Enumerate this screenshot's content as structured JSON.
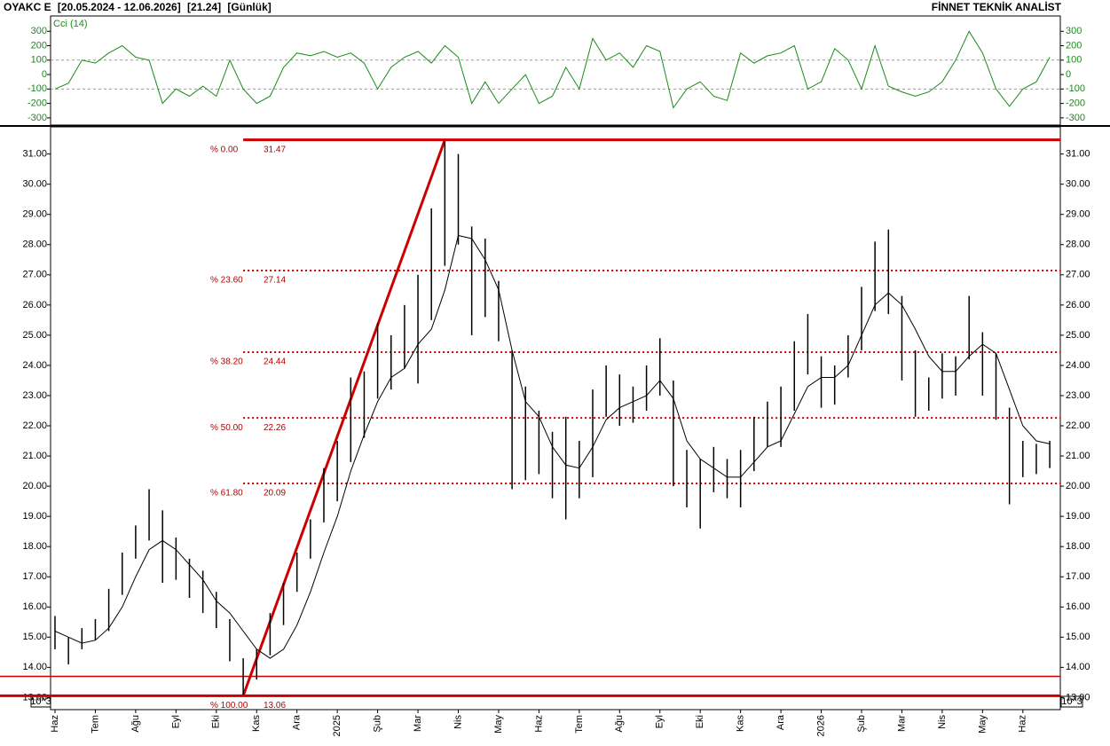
{
  "chart_data": {
    "type": "ohlc",
    "symbol": "OYAKC E",
    "period": "[20.05.2024 - 12.06.2026]",
    "last": "[21.24]",
    "interval": "[Günlük]",
    "brand": "FİNNET TEKNİK ANALİST",
    "cci_label": "Cci (14)",
    "unit_label": "10^3",
    "categories": [
      "Haz",
      null,
      null,
      "Tem",
      null,
      null,
      "Ağu",
      null,
      null,
      "Eyl",
      null,
      null,
      "Eki",
      null,
      null,
      "Kas",
      null,
      null,
      "Ara",
      null,
      null,
      "2025",
      null,
      null,
      "Şub",
      null,
      null,
      "Mar",
      null,
      null,
      "Nis",
      null,
      null,
      "May",
      null,
      null,
      "Haz",
      null,
      null,
      "Tem",
      null,
      null,
      "Ağu",
      null,
      null,
      "Eyl",
      null,
      null,
      "Eki",
      null,
      null,
      "Kas",
      null,
      null,
      "Ara",
      null,
      null,
      "2026",
      null,
      null,
      "Şub",
      null,
      null,
      "Mar",
      null,
      null,
      "Nis",
      null,
      null,
      "May",
      null,
      null,
      "Haz",
      null,
      null
    ],
    "high": [
      15.7,
      15.0,
      15.3,
      15.6,
      16.6,
      17.8,
      18.7,
      19.9,
      19.2,
      18.3,
      17.6,
      17.2,
      16.5,
      15.6,
      14.3,
      14.6,
      15.8,
      16.8,
      17.8,
      18.9,
      20.6,
      21.5,
      23.6,
      23.8,
      25.4,
      25.0,
      26.0,
      27.0,
      29.2,
      31.4,
      31.0,
      28.6,
      28.2,
      26.8,
      24.5,
      23.3,
      22.5,
      21.8,
      22.3,
      21.5,
      23.2,
      24.0,
      23.7,
      23.3,
      24.0,
      24.9,
      23.5,
      21.2,
      20.9,
      21.3,
      20.9,
      21.2,
      22.3,
      22.8,
      23.3,
      24.8,
      25.7,
      24.3,
      24.0,
      25.0,
      26.6,
      28.1,
      28.5,
      26.3,
      24.5,
      23.6,
      24.4,
      24.3,
      26.3,
      25.1,
      24.4,
      22.6,
      21.5,
      21.4,
      21.5
    ],
    "low": [
      14.6,
      14.1,
      14.6,
      14.9,
      15.2,
      16.4,
      17.6,
      18.2,
      16.8,
      16.9,
      16.3,
      15.8,
      15.3,
      14.2,
      13.1,
      13.6,
      14.4,
      15.4,
      16.5,
      17.6,
      18.8,
      19.5,
      20.8,
      21.6,
      22.9,
      23.2,
      23.9,
      23.4,
      25.5,
      27.3,
      28.0,
      25.0,
      25.6,
      24.8,
      19.9,
      20.2,
      20.4,
      19.6,
      18.9,
      19.6,
      20.3,
      22.3,
      22.0,
      22.1,
      22.5,
      23.0,
      20.0,
      19.3,
      18.6,
      19.8,
      19.6,
      19.3,
      20.5,
      21.3,
      21.3,
      22.5,
      23.7,
      22.6,
      22.7,
      23.6,
      24.5,
      25.8,
      25.7,
      23.5,
      22.3,
      22.5,
      22.9,
      23.0,
      24.2,
      23.0,
      22.2,
      19.4,
      20.3,
      20.4,
      20.6
    ],
    "ma": [
      15.2,
      15.0,
      14.8,
      14.9,
      15.3,
      16.0,
      17.0,
      17.9,
      18.2,
      17.9,
      17.4,
      16.9,
      16.2,
      15.8,
      15.2,
      14.6,
      14.3,
      14.6,
      15.4,
      16.5,
      17.8,
      19.0,
      20.5,
      21.7,
      22.8,
      23.6,
      23.9,
      24.7,
      25.2,
      26.5,
      28.3,
      28.2,
      27.5,
      26.5,
      24.5,
      22.8,
      22.3,
      21.3,
      20.7,
      20.6,
      21.3,
      22.2,
      22.6,
      22.8,
      23.0,
      23.5,
      22.9,
      21.5,
      20.9,
      20.6,
      20.3,
      20.3,
      20.8,
      21.3,
      21.5,
      22.4,
      23.3,
      23.6,
      23.6,
      24.0,
      25.0,
      26.0,
      26.4,
      26.0,
      25.2,
      24.3,
      23.8,
      23.8,
      24.3,
      24.7,
      24.4,
      23.2,
      22.0,
      21.5,
      21.4
    ],
    "cci": [
      -100,
      -60,
      100,
      80,
      150,
      200,
      120,
      100,
      -200,
      -100,
      -150,
      -80,
      -150,
      100,
      -100,
      -200,
      -150,
      50,
      150,
      130,
      160,
      120,
      150,
      80,
      -100,
      50,
      120,
      160,
      80,
      200,
      120,
      -200,
      -50,
      -200,
      -100,
      0,
      -200,
      -150,
      50,
      -100,
      250,
      100,
      150,
      50,
      200,
      160,
      -230,
      -100,
      -50,
      -150,
      -180,
      150,
      80,
      130,
      150,
      200,
      -100,
      -50,
      180,
      100,
      -100,
      200,
      -80,
      -120,
      -150,
      -120,
      -50,
      100,
      300,
      150,
      -100,
      -220,
      -100,
      -50,
      120
    ],
    "ylim": [
      12.6,
      31.9
    ],
    "yticks": [
      {
        "value": 13,
        "label": "13.00"
      },
      {
        "value": 14,
        "label": "14.00"
      },
      {
        "value": 15,
        "label": "15.00"
      },
      {
        "value": 16,
        "label": "16.00"
      },
      {
        "value": 17,
        "label": "17.00"
      },
      {
        "value": 18,
        "label": "18.00"
      },
      {
        "value": 19,
        "label": "19.00"
      },
      {
        "value": 20,
        "label": "20.00"
      },
      {
        "value": 21,
        "label": "21.00"
      },
      {
        "value": 22,
        "label": "22.00"
      },
      {
        "value": 23,
        "label": "23.00"
      },
      {
        "value": 24,
        "label": "24.00"
      },
      {
        "value": 25,
        "label": "25.00"
      },
      {
        "value": 26,
        "label": "26.00"
      },
      {
        "value": 27,
        "label": "27.00"
      },
      {
        "value": 28,
        "label": "28.00"
      },
      {
        "value": 29,
        "label": "29.00"
      },
      {
        "value": 30,
        "label": "30.00"
      },
      {
        "value": 31,
        "label": "31.00"
      }
    ],
    "cci_ylim": [
      -350,
      400
    ],
    "cci_yticks": [
      300,
      200,
      100,
      0,
      -100,
      -200,
      -300
    ],
    "cci_levels": [
      100,
      -100
    ],
    "fib": [
      {
        "label": "% 0.00",
        "value": 31.47
      },
      {
        "label": "% 23.60",
        "value": 27.14
      },
      {
        "label": "% 38.20",
        "value": 24.44
      },
      {
        "label": "% 50.00",
        "value": 22.26
      },
      {
        "label": "% 61.80",
        "value": 20.09
      },
      {
        "label": "% 100.00",
        "value": 13.06
      }
    ],
    "support_line": 13.7,
    "bar_color": "#000000",
    "ma_color": "#000000",
    "cci_color": "#1a8a1a",
    "fib_color": "#cc0000"
  }
}
